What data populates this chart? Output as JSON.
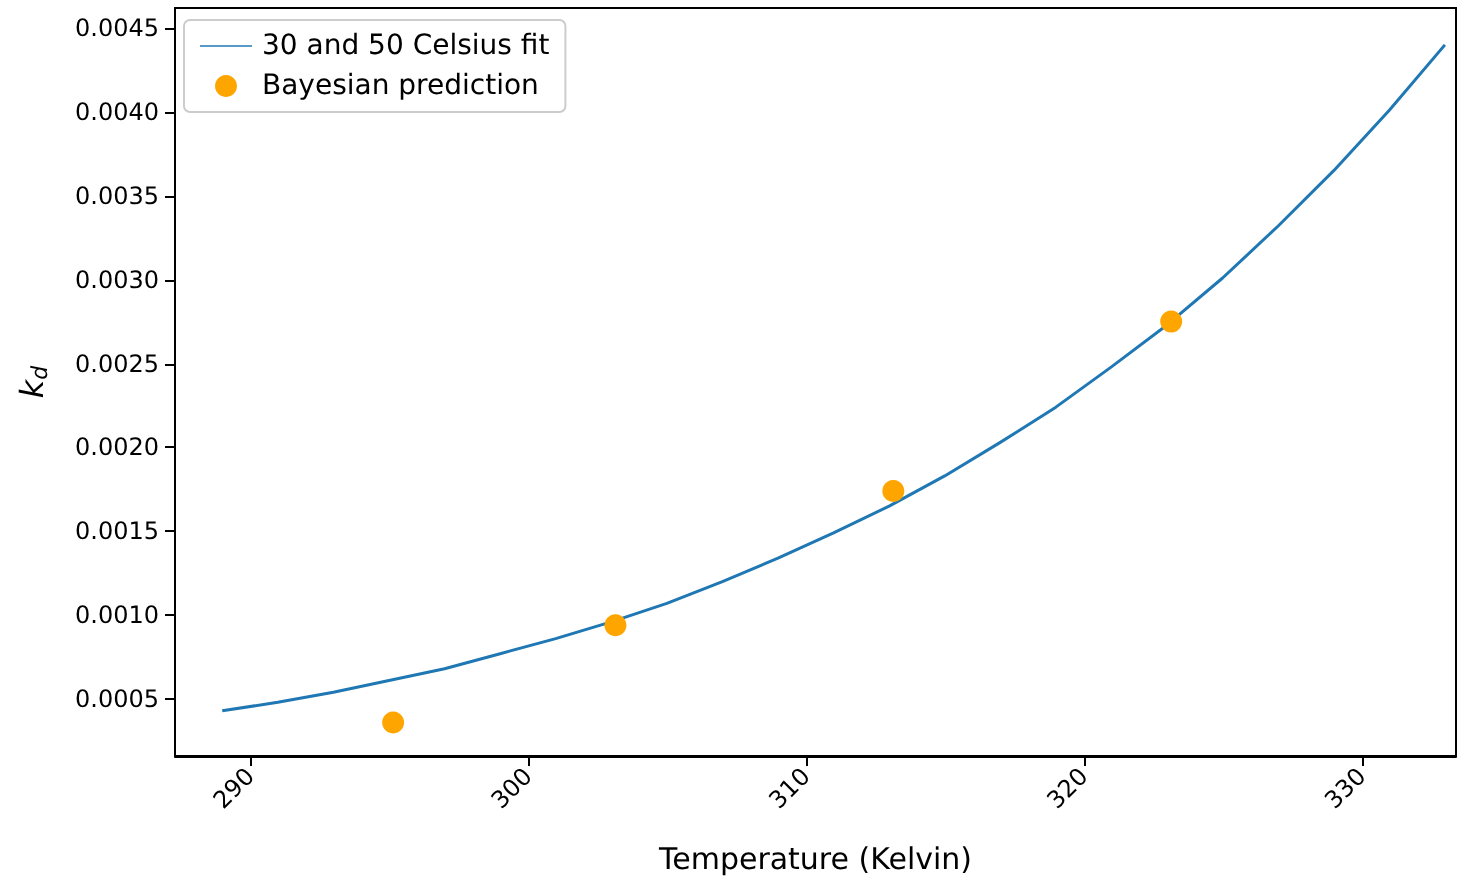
{
  "chart_data": {
    "type": "line",
    "xlabel": "Temperature (Kelvin)",
    "ylabel": "k$_{d}$",
    "xlim": [
      287.3,
      333.4
    ],
    "xticks": [
      290,
      300,
      310,
      320,
      330
    ],
    "ylim": [
      0.00016,
      0.00462
    ],
    "yticks": [
      0.0005,
      {
        "value": 0.001,
        "label": "0.0010"
      },
      0.0015,
      {
        "value": 0.002,
        "label": "0.0020"
      },
      0.0025,
      {
        "value": 0.003,
        "label": "0.0030"
      },
      0.0035,
      {
        "value": 0.004,
        "label": "0.0040"
      },
      0.0045
    ],
    "grid": false,
    "legend": "top left",
    "series": [
      {
        "name": "30 and 50 Celsius fit",
        "color": "#1f77b4",
        "marker": "none",
        "line_style": "solid",
        "x": [
          289,
          291,
          293,
          295,
          297,
          299,
          301,
          303,
          305,
          307,
          309,
          311,
          313,
          315,
          317,
          319,
          321,
          323,
          325,
          327,
          329,
          331,
          333
        ],
        "values": [
          0.00043,
          0.00048,
          0.00054,
          0.00061,
          0.00068,
          0.00077,
          0.00086,
          0.00096,
          0.00107,
          0.0012,
          0.00134,
          0.00149,
          0.00165,
          0.00183,
          0.00203,
          0.00224,
          0.00248,
          0.00273,
          0.00301,
          0.00332,
          0.00365,
          0.00401,
          0.0044
        ]
      },
      {
        "name": "Bayesian prediction",
        "type": "scatter",
        "color": "#ffa500",
        "marker": "circle",
        "x": [
          295.15,
          303.15,
          313.15,
          323.15
        ],
        "values": [
          0.00036,
          0.00094,
          0.00174,
          0.00275
        ]
      }
    ]
  }
}
